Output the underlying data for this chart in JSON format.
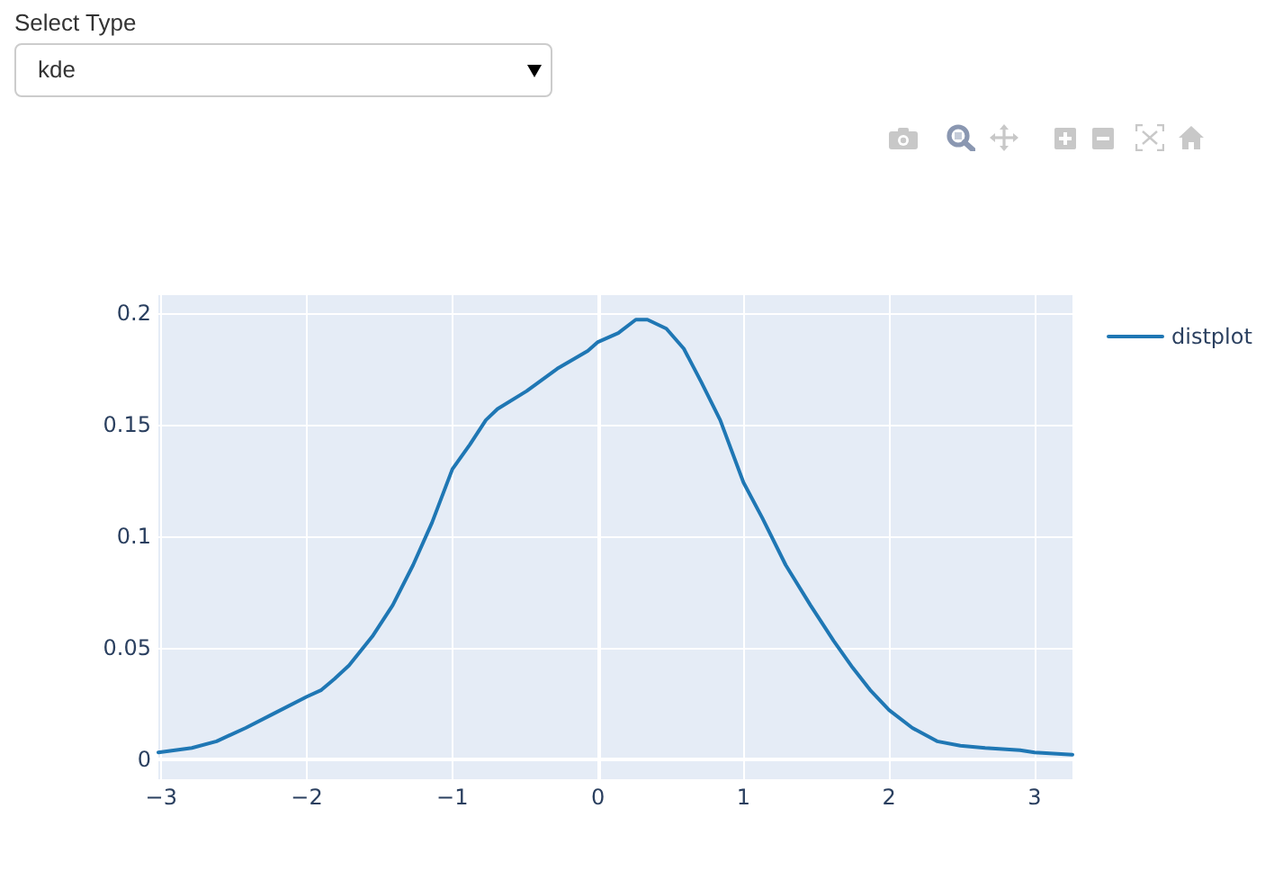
{
  "chart_data": {
    "type": "line",
    "annotations": [
      "Select Type",
      "kde"
    ],
    "x": [
      -3.02,
      -2.79,
      -2.62,
      -2.42,
      -2.21,
      -2.0,
      -1.9,
      -1.81,
      -1.71,
      -1.55,
      -1.41,
      -1.27,
      -1.14,
      -1.0,
      -0.88,
      -0.77,
      -0.69,
      -0.49,
      -0.28,
      -0.07,
      0.0,
      0.14,
      0.26,
      0.34,
      0.47,
      0.59,
      0.71,
      0.84,
      1.0,
      1.13,
      1.29,
      1.46,
      1.62,
      1.75,
      1.87,
      2.0,
      2.16,
      2.33,
      2.49,
      2.66,
      2.9,
      3.0,
      3.26
    ],
    "series": [
      {
        "name": "distplot",
        "color": "#1f77b4",
        "values": [
          0.003,
          0.005,
          0.008,
          0.014,
          0.021,
          0.028,
          0.031,
          0.036,
          0.042,
          0.055,
          0.069,
          0.087,
          0.106,
          0.13,
          0.141,
          0.152,
          0.157,
          0.165,
          0.175,
          0.183,
          0.187,
          0.191,
          0.197,
          0.197,
          0.193,
          0.184,
          0.169,
          0.152,
          0.124,
          0.108,
          0.087,
          0.069,
          0.053,
          0.041,
          0.031,
          0.022,
          0.014,
          0.008,
          0.006,
          0.005,
          0.004,
          0.003,
          0.002
        ]
      }
    ],
    "xlim": [
      -3.02,
      3.26
    ],
    "ylim": [
      -0.009,
      0.208
    ],
    "xticks": [
      {
        "value": -3,
        "label": "−3"
      },
      {
        "value": -2,
        "label": "−2"
      },
      {
        "value": -1,
        "label": "−1"
      },
      0,
      1,
      2,
      3
    ],
    "yticks": [
      0,
      0.05,
      0.1,
      0.15,
      0.2
    ],
    "grid": true,
    "legend": "top right"
  }
}
